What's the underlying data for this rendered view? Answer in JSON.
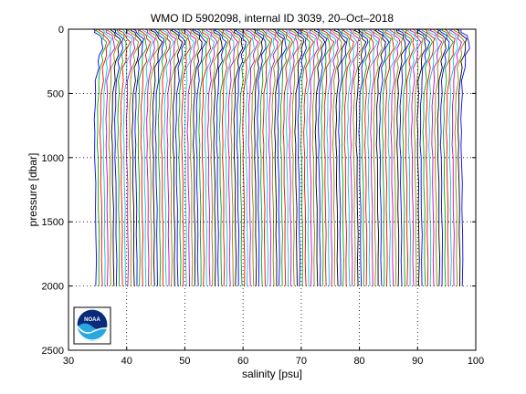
{
  "chart_data": {
    "type": "line",
    "title": "WMO ID 5902098, internal ID 3039, 20–Oct–2018",
    "xlabel": "salinity [psu]",
    "ylabel": "pressure [dbar]",
    "xlim": [
      30,
      100
    ],
    "ylim": [
      0,
      2500
    ],
    "y_reversed": true,
    "x_ticks": [
      30,
      40,
      50,
      60,
      70,
      80,
      90,
      100
    ],
    "y_ticks": [
      0,
      500,
      1000,
      1500,
      2000,
      2500
    ],
    "grid": "dotted",
    "logo": "noaa",
    "profiles": {
      "count": 127,
      "offset_start_psu": 0,
      "offset_step_psu": 0.5,
      "pressure_dbar": [
        0,
        10,
        25,
        50,
        75,
        100,
        150,
        200,
        250,
        300,
        400,
        500,
        600,
        700,
        800,
        900,
        1000,
        1200,
        1400,
        1600,
        1800,
        2000
      ],
      "base_salinity_psu": [
        34.3,
        34.4,
        34.7,
        35.3,
        35.7,
        35.9,
        35.7,
        35.4,
        35.2,
        35.0,
        34.8,
        34.65,
        34.55,
        34.5,
        34.48,
        34.5,
        34.55,
        34.62,
        34.68,
        34.72,
        34.74,
        34.75
      ],
      "colors": [
        "#0000ff",
        "#00aa00",
        "#ff0000",
        "#00cccc",
        "#cc00cc",
        "#888800",
        "#000000"
      ]
    }
  }
}
